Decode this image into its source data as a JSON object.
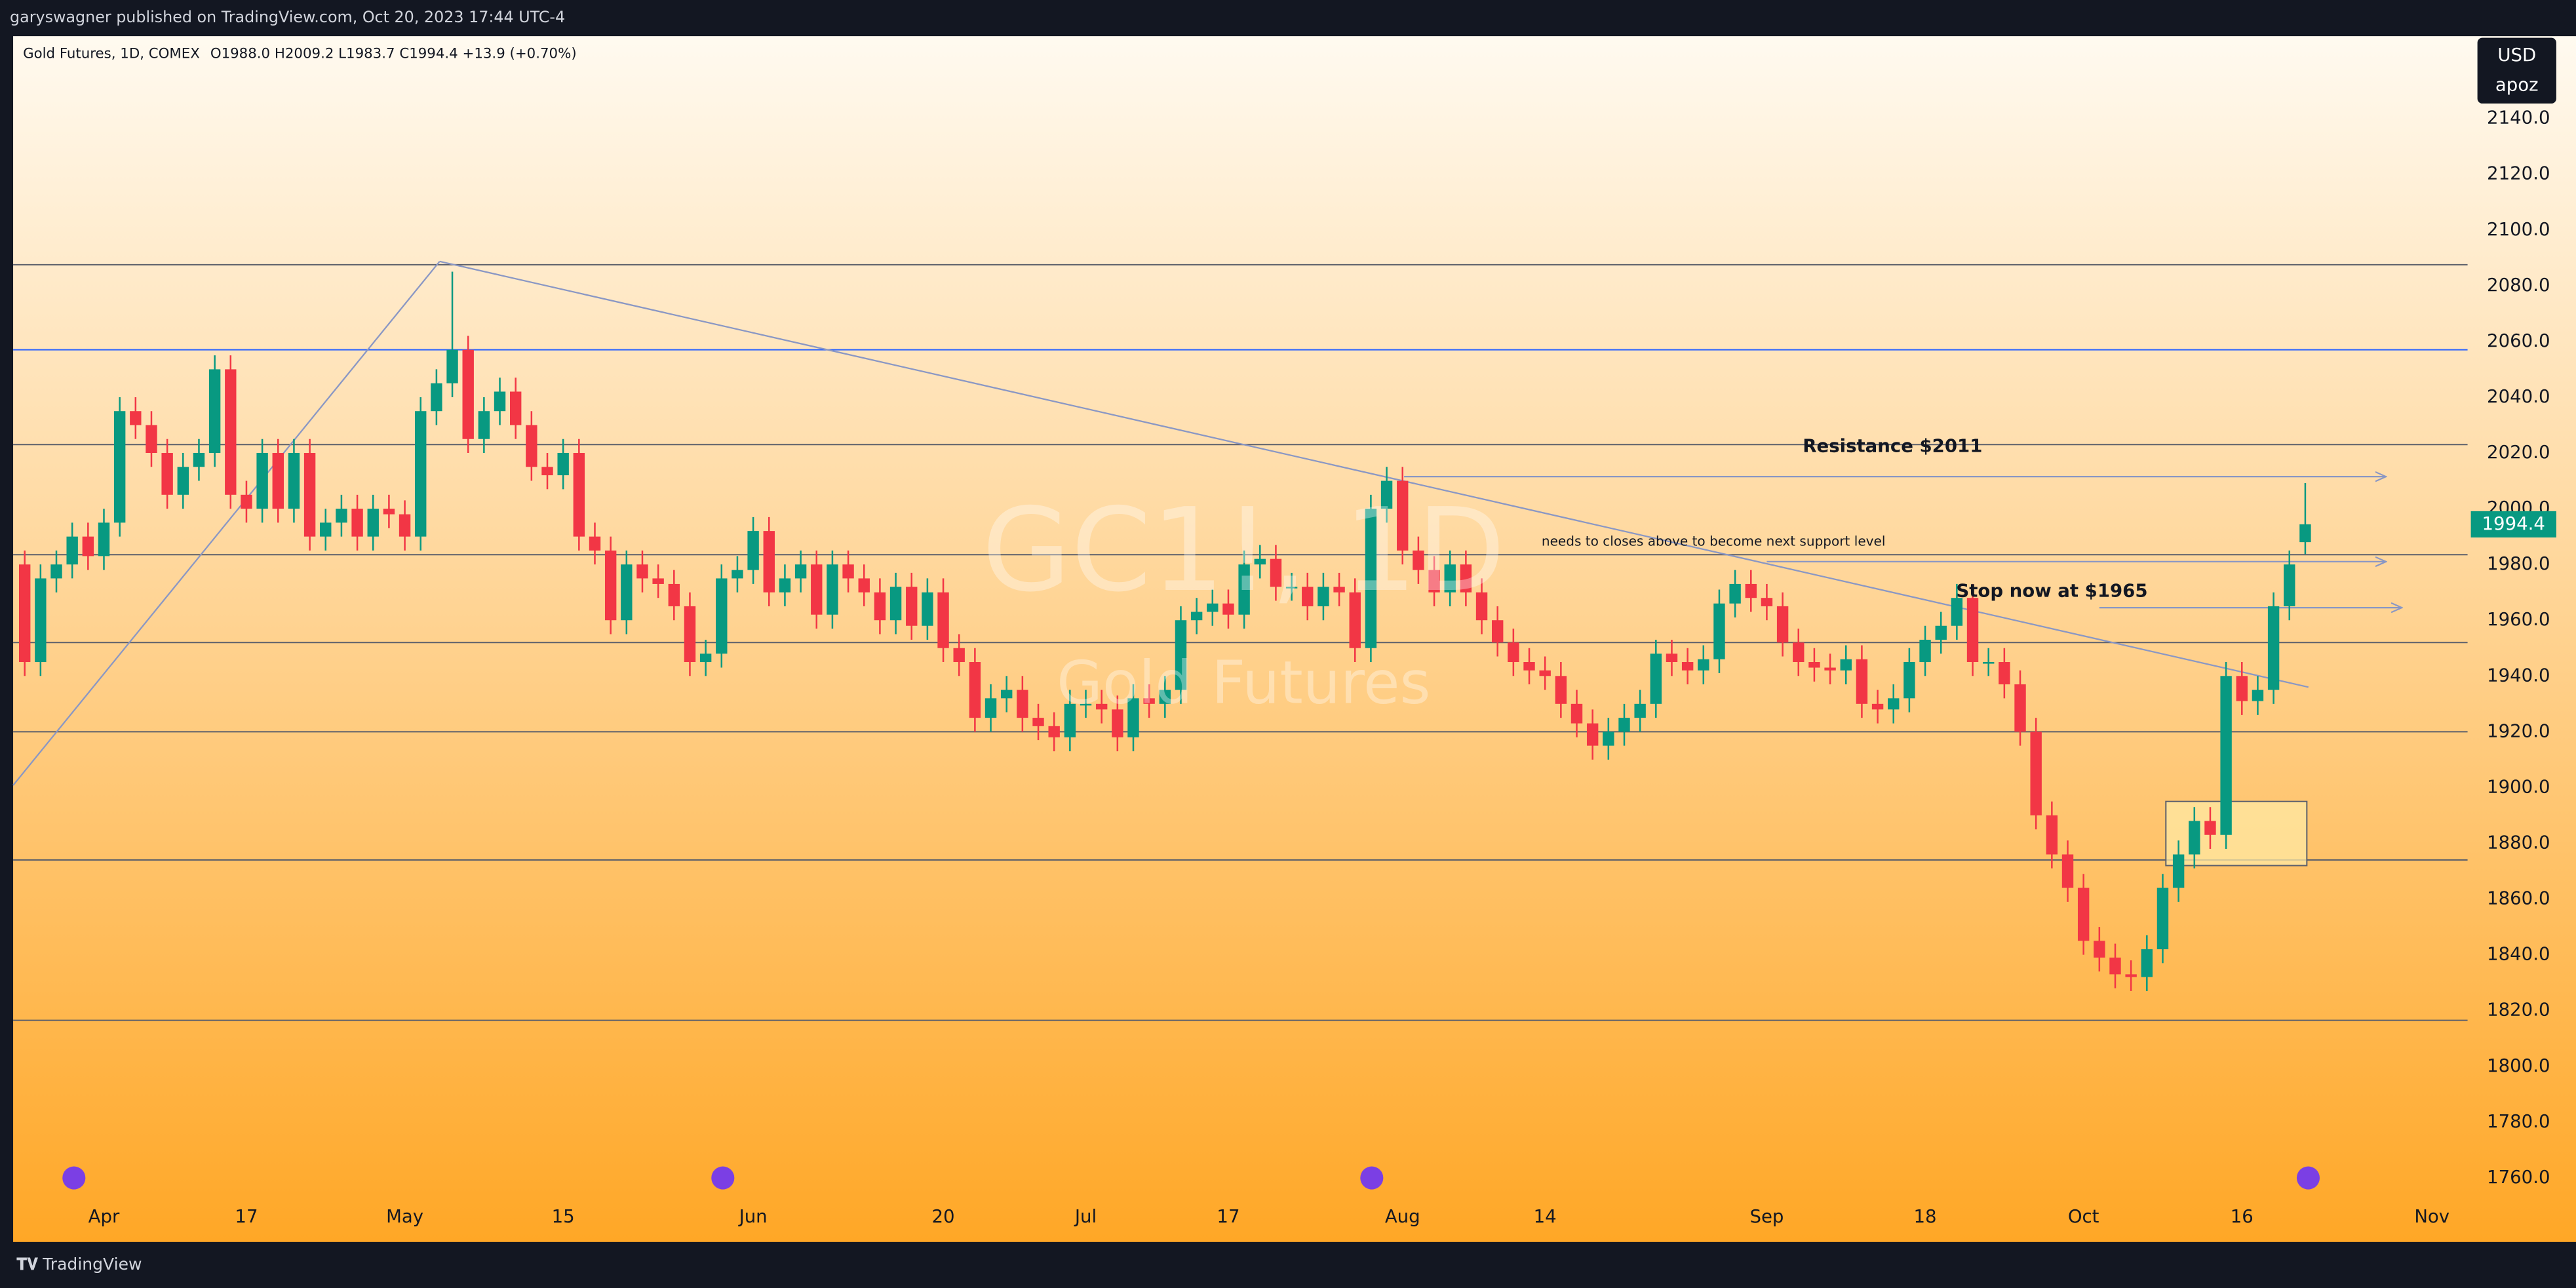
{
  "header": {
    "published": "garyswagner published on TradingView.com, Oct 20, 2023 17:44 UTC-4",
    "brand": "TradingView"
  },
  "chart_data": {
    "type": "candlestick",
    "legend": {
      "symbol": "Gold Futures, 1D, COMEX",
      "ohlc": "O1988.0  H2009.2  L1983.7  C1994.4  +13.9 (+0.70%)"
    },
    "watermark": {
      "symbol": "GC1!, 1D",
      "description": "Gold Futures"
    },
    "currency": {
      "code": "USD",
      "unit": "apoz"
    },
    "up_color": "#089981",
    "down_color": "#f23645",
    "grid": false,
    "open": [
      1980,
      1945,
      1975,
      1980,
      1990,
      1983,
      1995,
      2035,
      2030,
      2020,
      2005,
      2015,
      2020,
      2050,
      2005,
      2000,
      2020,
      2000,
      2020,
      1990,
      1995,
      2000,
      1990,
      2000,
      1998,
      1990,
      2035,
      2045,
      2057,
      2025,
      2035,
      2042,
      2030,
      2015,
      2012,
      2020,
      1990,
      1985,
      1960,
      1980,
      1975,
      1973,
      1965,
      1945,
      1948,
      1975,
      1978,
      1992,
      1970,
      1975,
      1980,
      1962,
      1980,
      1975,
      1970,
      1960,
      1972,
      1958,
      1970,
      1950,
      1945,
      1925,
      1932,
      1935,
      1925,
      1922,
      1918,
      1930,
      1930,
      1928,
      1918,
      1932,
      1930,
      1935,
      1960,
      1963,
      1966,
      1962,
      1980,
      1982,
      1972,
      1972,
      1965,
      1972,
      1970,
      1950,
      2000,
      2010,
      1985,
      1978,
      1970,
      1980,
      1970,
      1960,
      1952,
      1945,
      1942,
      1940,
      1930,
      1923,
      1915,
      1920,
      1925,
      1930,
      1948,
      1945,
      1942,
      1946,
      1966,
      1973,
      1968,
      1965,
      1952,
      1945,
      1943,
      1942,
      1946,
      1930,
      1928,
      1932,
      1945,
      1953,
      1958,
      1968,
      1945,
      1945,
      1937,
      1920,
      1890,
      1876,
      1864,
      1845,
      1839,
      1833,
      1832,
      1842,
      1864,
      1876,
      1888,
      1883,
      1940,
      1931,
      1935,
      1965,
      1988.0
    ],
    "high": [
      1985,
      1980,
      1985,
      1995,
      1995,
      2000,
      2040,
      2040,
      2035,
      2025,
      2020,
      2025,
      2055,
      2055,
      2010,
      2025,
      2025,
      2025,
      2025,
      2000,
      2005,
      2005,
      2005,
      2005,
      2003,
      2040,
      2050,
      2085,
      2062,
      2040,
      2047,
      2047,
      2035,
      2020,
      2025,
      2025,
      1995,
      1990,
      1985,
      1985,
      1980,
      1978,
      1970,
      1953,
      1980,
      1983,
      1997,
      1997,
      1980,
      1985,
      1985,
      1985,
      1985,
      1980,
      1975,
      1977,
      1977,
      1975,
      1975,
      1955,
      1950,
      1937,
      1940,
      1940,
      1930,
      1927,
      1935,
      1935,
      1935,
      1933,
      1937,
      1937,
      1940,
      1965,
      1968,
      1971,
      1971,
      1985,
      1987,
      1987,
      1977,
      1977,
      1977,
      1977,
      1975,
      2005,
      2015,
      2015,
      1990,
      1983,
      1985,
      1985,
      1975,
      1965,
      1957,
      1950,
      1947,
      1945,
      1935,
      1928,
      1925,
      1930,
      1935,
      1953,
      1953,
      1950,
      1951,
      1971,
      1978,
      1978,
      1973,
      1970,
      1957,
      1950,
      1948,
      1951,
      1951,
      1935,
      1937,
      1950,
      1958,
      1963,
      1973,
      1973,
      1950,
      1950,
      1942,
      1925,
      1895,
      1881,
      1869,
      1850,
      1844,
      1838,
      1847,
      1869,
      1881,
      1893,
      1893,
      1945,
      1945,
      1940,
      1970,
      1985,
      2009.2
    ],
    "low": [
      1940,
      1940,
      1970,
      1975,
      1978,
      1978,
      1990,
      2025,
      2015,
      2000,
      2000,
      2010,
      2015,
      2000,
      1995,
      1995,
      1995,
      1995,
      1985,
      1985,
      1990,
      1985,
      1985,
      1993,
      1985,
      1985,
      2030,
      2040,
      2020,
      2020,
      2030,
      2025,
      2010,
      2007,
      2007,
      1985,
      1980,
      1955,
      1955,
      1970,
      1968,
      1960,
      1940,
      1940,
      1943,
      1970,
      1973,
      1965,
      1965,
      1970,
      1957,
      1957,
      1970,
      1965,
      1955,
      1955,
      1953,
      1953,
      1945,
      1940,
      1920,
      1920,
      1927,
      1920,
      1917,
      1913,
      1913,
      1925,
      1923,
      1913,
      1913,
      1925,
      1925,
      1930,
      1955,
      1958,
      1957,
      1957,
      1975,
      1967,
      1967,
      1960,
      1960,
      1965,
      1945,
      1945,
      1995,
      1980,
      1973,
      1965,
      1965,
      1965,
      1955,
      1947,
      1940,
      1937,
      1935,
      1925,
      1918,
      1910,
      1910,
      1915,
      1920,
      1925,
      1940,
      1937,
      1937,
      1941,
      1961,
      1963,
      1960,
      1947,
      1940,
      1938,
      1937,
      1937,
      1925,
      1923,
      1923,
      1927,
      1940,
      1948,
      1953,
      1940,
      1940,
      1932,
      1915,
      1885,
      1871,
      1859,
      1840,
      1834,
      1828,
      1827,
      1827,
      1837,
      1859,
      1871,
      1878,
      1878,
      1926,
      1926,
      1930,
      1960,
      1983.7
    ],
    "close": [
      1945,
      1975,
      1980,
      1990,
      1983,
      1995,
      2035,
      2030,
      2020,
      2005,
      2015,
      2020,
      2050,
      2005,
      2000,
      2020,
      2000,
      2020,
      1990,
      1995,
      2000,
      1990,
      2000,
      1998,
      1990,
      2035,
      2045,
      2057,
      2025,
      2035,
      2042,
      2030,
      2015,
      2012,
      2020,
      1990,
      1985,
      1960,
      1980,
      1975,
      1973,
      1965,
      1945,
      1948,
      1975,
      1978,
      1992,
      1970,
      1975,
      1980,
      1962,
      1980,
      1975,
      1970,
      1960,
      1972,
      1958,
      1970,
      1950,
      1945,
      1925,
      1932,
      1935,
      1925,
      1922,
      1918,
      1930,
      1930,
      1928,
      1918,
      1932,
      1930,
      1935,
      1960,
      1963,
      1966,
      1962,
      1980,
      1982,
      1972,
      1972,
      1965,
      1972,
      1970,
      1950,
      2000,
      2010,
      1985,
      1978,
      1970,
      1980,
      1970,
      1960,
      1952,
      1945,
      1942,
      1940,
      1930,
      1923,
      1915,
      1920,
      1925,
      1930,
      1948,
      1945,
      1942,
      1946,
      1966,
      1973,
      1968,
      1965,
      1952,
      1945,
      1943,
      1942,
      1946,
      1930,
      1928,
      1932,
      1945,
      1953,
      1958,
      1968,
      1945,
      1945,
      1937,
      1920,
      1890,
      1876,
      1864,
      1845,
      1839,
      1833,
      1832,
      1842,
      1864,
      1876,
      1888,
      1883,
      1940,
      1931,
      1935,
      1965,
      1980,
      1994.4
    ],
    "xlim": [
      -0.73,
      154.25
    ],
    "xticks": [
      {
        "value": 5,
        "label": "Apr"
      },
      {
        "value": 14,
        "label": "17"
      },
      {
        "value": 24,
        "label": "May"
      },
      {
        "value": 34,
        "label": "15"
      },
      {
        "value": 46,
        "label": "Jun"
      },
      {
        "value": 58,
        "label": "20"
      },
      {
        "value": 67,
        "label": "Jul"
      },
      {
        "value": 76,
        "label": "17"
      },
      {
        "value": 87,
        "label": "Aug"
      },
      {
        "value": 96,
        "label": "14"
      },
      {
        "value": 110,
        "label": "Sep"
      },
      {
        "value": 120,
        "label": "18"
      },
      {
        "value": 130,
        "label": "Oct"
      },
      {
        "value": 140,
        "label": "16"
      },
      {
        "value": 152,
        "label": "Nov"
      }
    ],
    "ylim": [
      1752.3,
      2169.5
    ],
    "yticks": [
      {
        "value": 1760,
        "label": "1760.0"
      },
      {
        "value": 1780,
        "label": "1780.0"
      },
      {
        "value": 1800,
        "label": "1800.0"
      },
      {
        "value": 1820,
        "label": "1820.0"
      },
      {
        "value": 1840,
        "label": "1840.0"
      },
      {
        "value": 1860,
        "label": "1860.0"
      },
      {
        "value": 1880,
        "label": "1880.0"
      },
      {
        "value": 1900,
        "label": "1900.0"
      },
      {
        "value": 1920,
        "label": "1920.0"
      },
      {
        "value": 1940,
        "label": "1940.0"
      },
      {
        "value": 1960,
        "label": "1960.0"
      },
      {
        "value": 1980,
        "label": "1980.0"
      },
      {
        "value": 2000,
        "label": "2000.0"
      },
      {
        "value": 2020,
        "label": "2020.0"
      },
      {
        "value": 2040,
        "label": "2040.0"
      },
      {
        "value": 2060,
        "label": "2060.0"
      },
      {
        "value": 2080,
        "label": "2080.0"
      },
      {
        "value": 2100,
        "label": "2100.0"
      },
      {
        "value": 2120,
        "label": "2120.0"
      },
      {
        "value": 2140,
        "label": "2140.0"
      }
    ],
    "horizontal_lines": [
      {
        "price": 2087.5,
        "color": "#5d606b"
      },
      {
        "price": 2057,
        "color": "#2962ff"
      },
      {
        "price": 2023,
        "color": "#5d606b"
      },
      {
        "price": 1983.5,
        "color": "#5d606b"
      },
      {
        "price": 1952,
        "color": "#5d606b"
      },
      {
        "price": 1920,
        "color": "#5d606b"
      },
      {
        "price": 1874,
        "color": "#5d606b"
      },
      {
        "price": 1816.5,
        "color": "#5d606b"
      }
    ],
    "trend_lines": [
      {
        "x": [
          -0.73,
          26.2
        ],
        "y": [
          1900.8,
          2088.7
        ],
        "color": "#8a97c4"
      },
      {
        "x": [
          26.2,
          144.2
        ],
        "y": [
          2088.7,
          1936
        ],
        "color": "#8a97c4"
      }
    ],
    "arrows": [
      {
        "x": [
          87.1,
          149.1
        ],
        "price": 2011.5,
        "color": "#8a97c4"
      },
      {
        "x": [
          110,
          149.1
        ],
        "price": 1981,
        "color": "#8a97c4"
      },
      {
        "x": [
          131,
          150.1
        ],
        "price": 1964.5,
        "color": "#8a97c4"
      }
    ],
    "boxes": [
      {
        "x": [
          135.2,
          144.1
        ],
        "y": [
          1872,
          1895
        ],
        "color": "#ffe8a3"
      }
    ],
    "annotations": [
      "Resistance $2011",
      "needs to closes above to become next support level",
      "Stop now at $1965"
    ]
  }
}
